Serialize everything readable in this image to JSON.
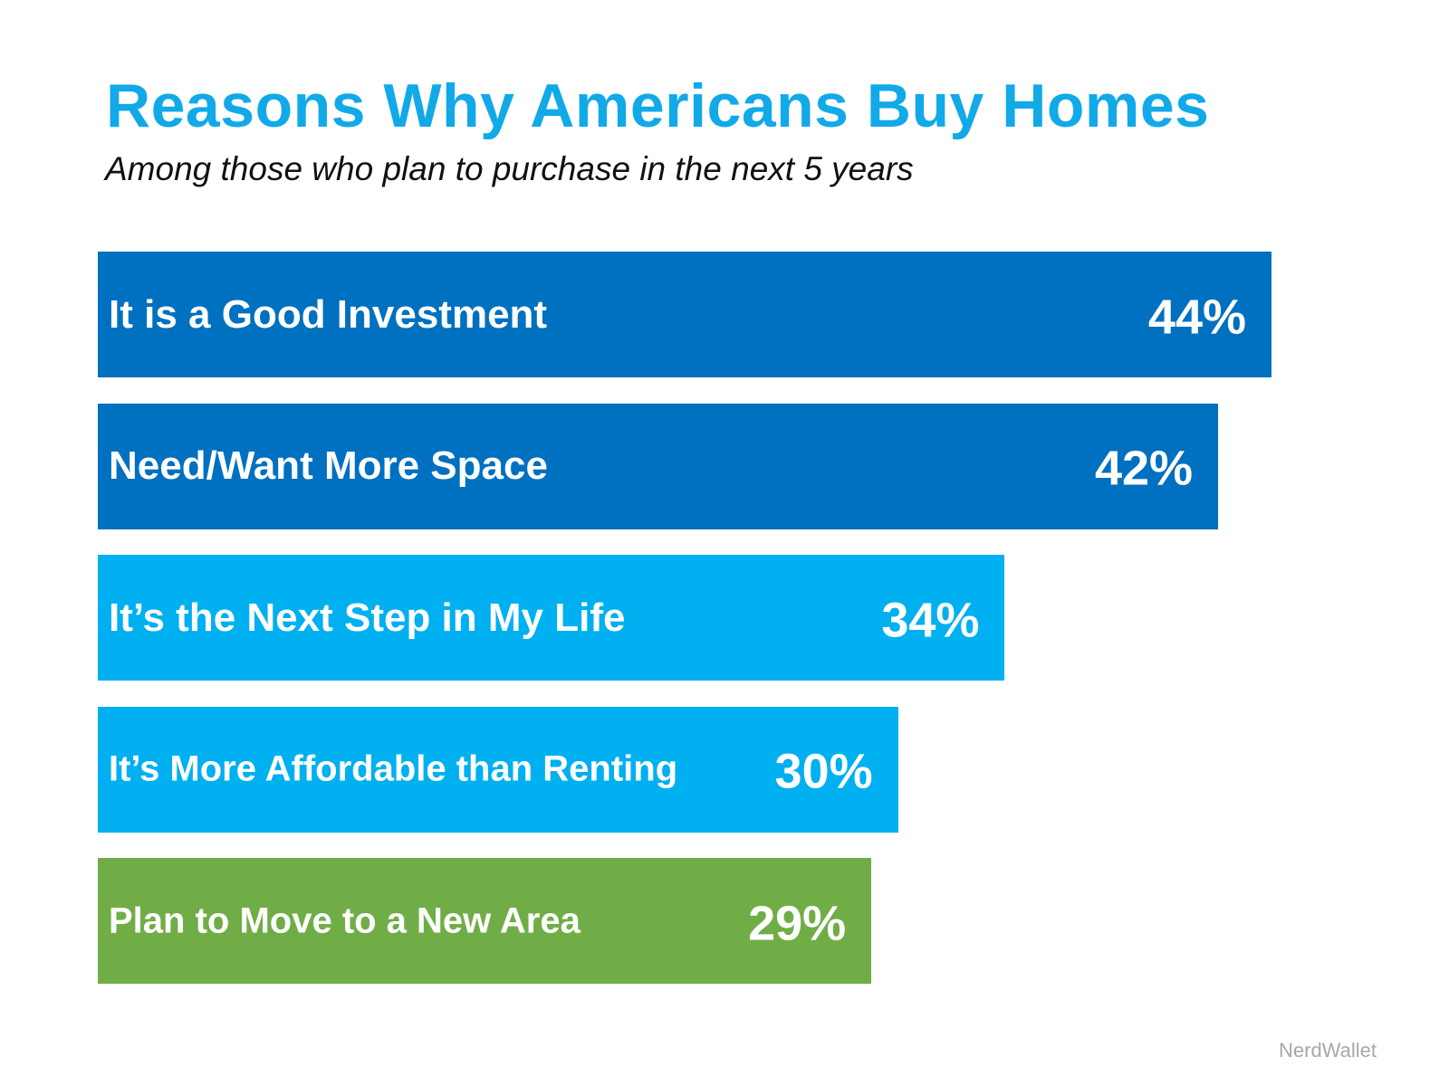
{
  "chart_data": {
    "type": "bar",
    "orientation": "horizontal",
    "title": "Reasons Why Americans Buy Homes",
    "subtitle": "Among those who plan to purchase in the next 5 years",
    "categories": [
      "It is a Good Investment",
      "Need/Want More Space",
      "It’s the Next Step in My Life",
      "It’s More Affordable than Renting",
      "Plan to Move to a New Area"
    ],
    "values": [
      44,
      42,
      34,
      30,
      29
    ],
    "value_labels": [
      "44%",
      "42%",
      "34%",
      "30%",
      "29%"
    ],
    "colors": [
      "#0070C0",
      "#0070C0",
      "#00B0F0",
      "#00B0F0",
      "#70AD47"
    ],
    "xlim": [
      0,
      44
    ],
    "unit": "%",
    "grid": false,
    "source": "NerdWallet"
  }
}
